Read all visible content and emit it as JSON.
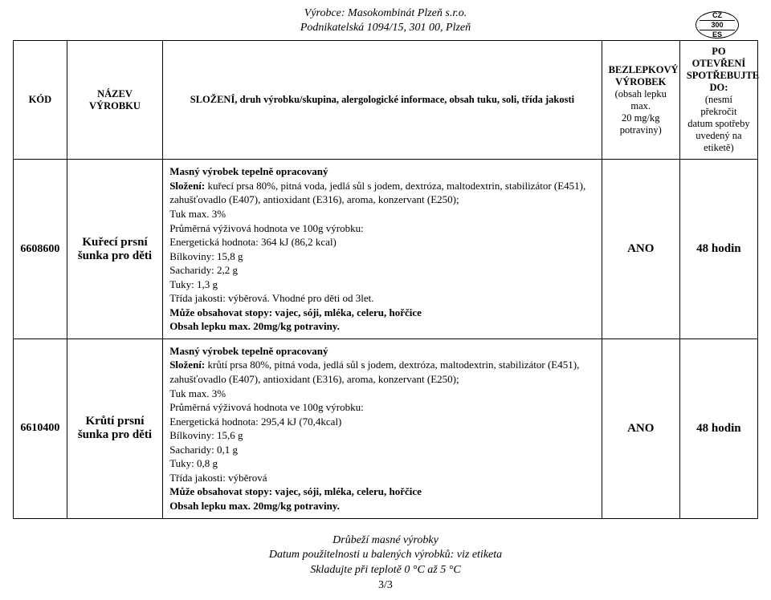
{
  "header": {
    "line1": "Výrobce: Masokombinát Plzeň s.r.o.",
    "line2": "Podnikatelská 1094/15, 301 00, Plzeň"
  },
  "badge": {
    "top": "CZ",
    "mid": "300",
    "bot": "ES"
  },
  "columns": {
    "kod": "KÓD",
    "nazev": "NÁZEV VÝROBKU",
    "slozeni": "SLOŽENÍ, druh výrobku/skupina, alergologické informace, obsah tuku, soli, třída jakosti",
    "bezlep_l1": "BEZLEPKOVÝ",
    "bezlep_l2": "VÝROBEK",
    "bezlep_l3": "(obsah lepku max.",
    "bezlep_l4": "20 mg/kg",
    "bezlep_l5": "potraviny)",
    "spot_l1": "PO OTEVŘENÍ",
    "spot_l2": "SPOTŘEBUJTE",
    "spot_l3": "DO:",
    "spot_l4": "(nesmí překročit",
    "spot_l5": "datum spotřeby",
    "spot_l6": "uvedený na",
    "spot_l7": "etiketě)"
  },
  "rows": [
    {
      "kod": "6608600",
      "nazev_l1": "Kuřecí prsní",
      "nazev_l2": "šunka pro děti",
      "s1": "Masný výrobek tepelně opracovaný",
      "s2a": "Složení:",
      "s2b": " kuřecí prsa 80%, pitná voda, jedlá sůl s jodem, dextróza, maltodextrin, stabilizátor (E451),",
      "s3": "zahušťovadlo (E407), antioxidant (E316), aroma, konzervant (E250);",
      "s4": "Tuk max. 3%",
      "s5": "Průměrná výživová hodnota ve 100g výrobku:",
      "s6": "Energetická hodnota: 364 kJ (86,2 kcal)",
      "s7": "Bílkoviny: 15,8 g",
      "s8": "Sacharidy: 2,2 g",
      "s9": "Tuky: 1,3 g",
      "s10": "Třída jakosti: výběrová. Vhodné pro děti od 3let.",
      "s11": "Může obsahovat stopy: vajec, sóji, mléka, celeru, hořčice",
      "s12": "Obsah lepku max. 20mg/kg potraviny.",
      "bezlep": "ANO",
      "spot": "48 hodin"
    },
    {
      "kod": "6610400",
      "nazev_l1": "Krůtí prsní",
      "nazev_l2": "šunka pro děti",
      "s1": "Masný výrobek tepelně opracovaný",
      "s2a": "Složení:",
      "s2b": " krůtí prsa 80%, pitná voda, jedlá sůl s jodem, dextróza, maltodextrin, stabilizátor (E451),",
      "s3": "zahušťovadlo (E407), antioxidant (E316), aroma, konzervant (E250);",
      "s4": "Tuk max. 3%",
      "s5": "Průměrná výživová hodnota ve 100g výrobku:",
      "s6": "Energetická hodnota: 295,4 kJ (70,4kcal)",
      "s7": "Bílkoviny: 15,6 g",
      "s8": "Sacharidy: 0,1 g",
      "s9": "Tuky: 0,8 g",
      "s10": "Třída jakosti: výběrová",
      "s11": "Může obsahovat stopy: vajec, sóji, mléka, celeru, hořčice",
      "s12": "Obsah lepku max. 20mg/kg potraviny.",
      "bezlep": "ANO",
      "spot": "48 hodin"
    }
  ],
  "footer": {
    "l1": "Drůbeží masné výrobky",
    "l2": "Datum použitelnosti u balených výrobků: viz etiketa",
    "l3": "Skladujte při teplotě 0 °C až 5 °C",
    "page": "3/3"
  }
}
